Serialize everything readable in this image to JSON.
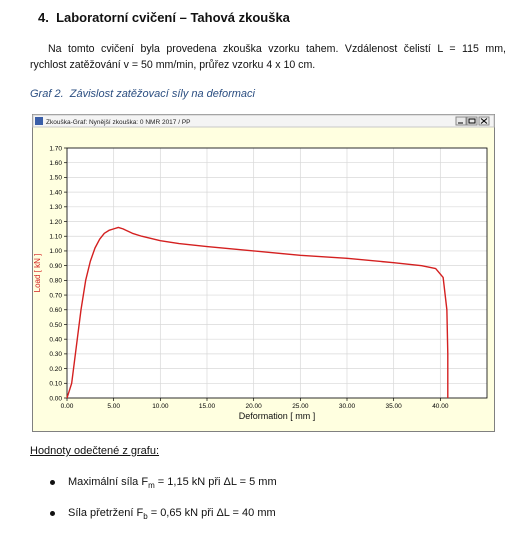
{
  "header": {
    "title": "4.  Laboratorní cvičení – Tahová zkouška"
  },
  "paragraph": {
    "lines": [
      "Na tomto cvičení byla provedena zkouška vzorku tahem. Vzdálenost čelistí L = 115 mm,",
      "rychlost zatěžování v = 50 mm/min, průřez vzorku 4 x 10 cm."
    ]
  },
  "caption": "Graf 2.  Závislost zatěžovací síly na deformaci",
  "window_title": "Zkouška-Graf:  Nynější zkouška: 0 NMR 2017 / PP",
  "chart_data": {
    "type": "line",
    "x_label": "Deformation [ mm ]",
    "y_label": "Load [ kN ]",
    "x": [
      0,
      0.5,
      1,
      1.5,
      2,
      2.5,
      3,
      3.5,
      4,
      4.5,
      5,
      5.5,
      6,
      7,
      8,
      10,
      12,
      15,
      20,
      25,
      30,
      35,
      38,
      39.5,
      40.3,
      40.7,
      40.8,
      40.8
    ],
    "series": [
      {
        "color": "#d42020",
        "values": [
          0,
          0.1,
          0.35,
          0.6,
          0.8,
          0.93,
          1.02,
          1.08,
          1.12,
          1.14,
          1.15,
          1.16,
          1.15,
          1.12,
          1.1,
          1.07,
          1.05,
          1.03,
          1.0,
          0.97,
          0.95,
          0.92,
          0.9,
          0.88,
          0.82,
          0.6,
          0.3,
          0
        ]
      }
    ],
    "xlim": [
      0,
      45
    ],
    "ylim": [
      0,
      1.7
    ],
    "grid": true,
    "xticks": [
      {
        "value": 0,
        "label": "0.00"
      },
      {
        "value": 5,
        "label": "5.00"
      },
      {
        "value": 10,
        "label": "10.00"
      },
      {
        "value": 15,
        "label": "15.00"
      },
      {
        "value": 20,
        "label": "20.00"
      },
      {
        "value": 25,
        "label": "25.00"
      },
      {
        "value": 30,
        "label": "30.00"
      },
      {
        "value": 35,
        "label": "35.00"
      },
      {
        "value": 40,
        "label": "40.00"
      }
    ],
    "yticks": [
      {
        "value": 0,
        "label": "0.00"
      },
      {
        "value": 0.1,
        "label": "0.10"
      },
      {
        "value": 0.2,
        "label": "0.20"
      },
      {
        "value": 0.3,
        "label": "0.30"
      },
      {
        "value": 0.4,
        "label": "0.40"
      },
      {
        "value": 0.5,
        "label": "0.50"
      },
      {
        "value": 0.6,
        "label": "0.60"
      },
      {
        "value": 0.7,
        "label": "0.70"
      },
      {
        "value": 0.8,
        "label": "0.80"
      },
      {
        "value": 0.9,
        "label": "0.90"
      },
      {
        "value": 1.0,
        "label": "1.00"
      },
      {
        "value": 1.1,
        "label": "1.10"
      },
      {
        "value": 1.2,
        "label": "1.20"
      },
      {
        "value": 1.3,
        "label": "1.30"
      },
      {
        "value": 1.4,
        "label": "1.40"
      },
      {
        "value": 1.5,
        "label": "1.50"
      },
      {
        "value": 1.6,
        "label": "1.60"
      },
      {
        "value": 1.7,
        "label": "1.70"
      }
    ]
  },
  "results": {
    "heading": "Hodnoty odečtené z grafu:",
    "items": [
      {
        "text": "Maximální síla F",
        "sub": "m",
        "rest": " = 1,15 kN při ΔL = 5 mm"
      },
      {
        "text": "Síla přetržení F",
        "sub": "b",
        "rest": " = 0,65 kN při ΔL = 40 mm"
      }
    ]
  }
}
